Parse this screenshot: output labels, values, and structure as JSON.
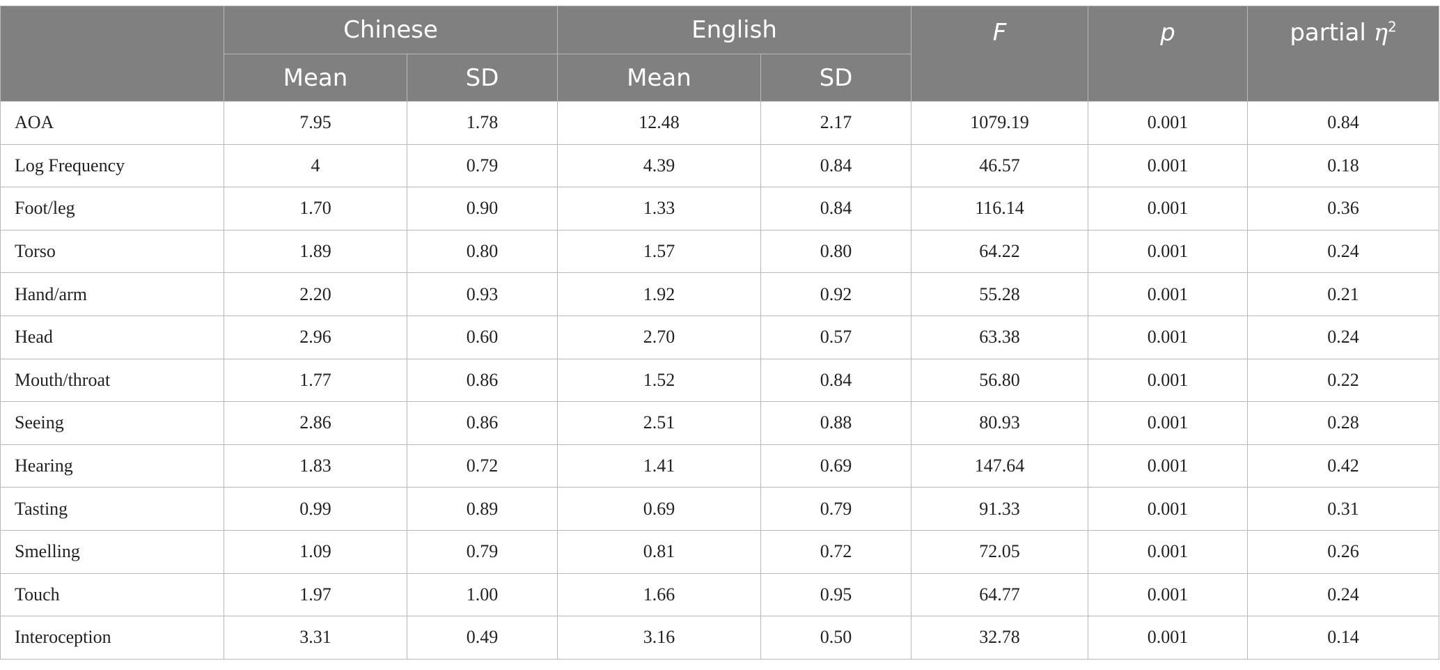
{
  "table": {
    "groups": {
      "chinese": "Chinese",
      "english": "English",
      "f": "F",
      "p": "p",
      "eta_prefix": "partial ",
      "eta_symbol": "η",
      "eta_sup": "2"
    },
    "subheaders": {
      "chinese_mean": "Mean",
      "chinese_sd": "SD",
      "english_mean": "Mean",
      "english_sd": "SD"
    },
    "rows": [
      {
        "label": "AOA",
        "c_mean": "7.95",
        "c_sd": "1.78",
        "e_mean": "12.48",
        "e_sd": "2.17",
        "f": "1079.19",
        "p": "0.001",
        "eta": "0.84"
      },
      {
        "label": "Log Frequency",
        "c_mean": "4",
        "c_sd": "0.79",
        "e_mean": "4.39",
        "e_sd": "0.84",
        "f": "46.57",
        "p": "0.001",
        "eta": "0.18"
      },
      {
        "label": "Foot/leg",
        "c_mean": "1.70",
        "c_sd": "0.90",
        "e_mean": "1.33",
        "e_sd": "0.84",
        "f": "116.14",
        "p": "0.001",
        "eta": "0.36"
      },
      {
        "label": "Torso",
        "c_mean": "1.89",
        "c_sd": "0.80",
        "e_mean": "1.57",
        "e_sd": "0.80",
        "f": "64.22",
        "p": "0.001",
        "eta": "0.24"
      },
      {
        "label": "Hand/arm",
        "c_mean": "2.20",
        "c_sd": "0.93",
        "e_mean": "1.92",
        "e_sd": "0.92",
        "f": "55.28",
        "p": "0.001",
        "eta": "0.21"
      },
      {
        "label": "Head",
        "c_mean": "2.96",
        "c_sd": "0.60",
        "e_mean": "2.70",
        "e_sd": "0.57",
        "f": "63.38",
        "p": "0.001",
        "eta": "0.24"
      },
      {
        "label": "Mouth/throat",
        "c_mean": "1.77",
        "c_sd": "0.86",
        "e_mean": "1.52",
        "e_sd": "0.84",
        "f": "56.80",
        "p": "0.001",
        "eta": "0.22"
      },
      {
        "label": "Seeing",
        "c_mean": "2.86",
        "c_sd": "0.86",
        "e_mean": "2.51",
        "e_sd": "0.88",
        "f": "80.93",
        "p": "0.001",
        "eta": "0.28"
      },
      {
        "label": "Hearing",
        "c_mean": "1.83",
        "c_sd": "0.72",
        "e_mean": "1.41",
        "e_sd": "0.69",
        "f": "147.64",
        "p": "0.001",
        "eta": "0.42"
      },
      {
        "label": "Tasting",
        "c_mean": "0.99",
        "c_sd": "0.89",
        "e_mean": "0.69",
        "e_sd": "0.79",
        "f": "91.33",
        "p": "0.001",
        "eta": "0.31"
      },
      {
        "label": "Smelling",
        "c_mean": "1.09",
        "c_sd": "0.79",
        "e_mean": "0.81",
        "e_sd": "0.72",
        "f": "72.05",
        "p": "0.001",
        "eta": "0.26"
      },
      {
        "label": "Touch",
        "c_mean": "1.97",
        "c_sd": "1.00",
        "e_mean": "1.66",
        "e_sd": "0.95",
        "f": "64.77",
        "p": "0.001",
        "eta": "0.24"
      },
      {
        "label": "Interoception",
        "c_mean": "3.31",
        "c_sd": "0.49",
        "e_mean": "3.16",
        "e_sd": "0.50",
        "f": "32.78",
        "p": "0.001",
        "eta": "0.14"
      }
    ]
  },
  "colors": {
    "header_bg": "#808080",
    "header_text": "#ffffff",
    "border": "#b8b8b8",
    "body_text": "#222222"
  }
}
